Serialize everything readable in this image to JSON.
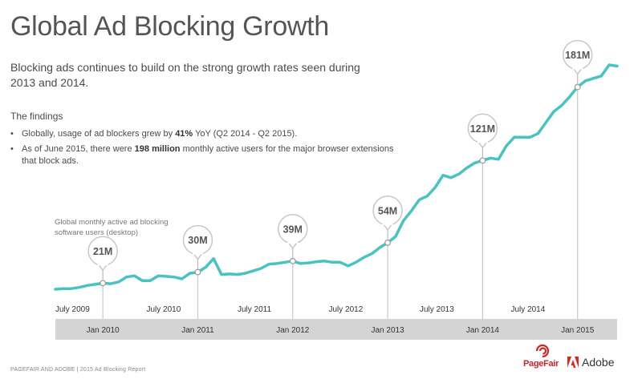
{
  "header": {
    "title": "Global Ad Blocking Growth",
    "subtitle": "Blocking ads continues to build on the strong growth rates seen during 2013 and 2014."
  },
  "findings": {
    "heading": "The findings",
    "item1": {
      "pre": "Globally, usage of ad blockers grew by ",
      "bold": "41%",
      "post": " YoY (Q2 2014 - Q2 2015)."
    },
    "item2": {
      "pre": "As of June 2015, there were ",
      "bold": "198 million",
      "post": " monthly active users for the major browser extensions that block ads."
    }
  },
  "footer": {
    "note": "PAGEFAIR AND ADOBE | 2015 Ad Blocking Report",
    "logo_pagefair": "PageFair",
    "logo_adobe": "Adobe"
  },
  "colors": {
    "line": "#48c3c3",
    "band": "#d4d4d4",
    "marker_line": "#c8c8c8",
    "pagefair_red": "#c7262c",
    "adobe_red": "#e1251b"
  },
  "chart_data": {
    "type": "line",
    "title": "Global Ad Blocking Growth",
    "ylabel": "Global monthly active ad blocking software users (desktop)",
    "y_unit": "million users",
    "x_range": [
      "2009-07",
      "2015-06"
    ],
    "y_range": [
      0,
      200
    ],
    "grid": false,
    "legend": "none",
    "upper_tick_labels": [
      "July 2009",
      "July 2010",
      "July 2011",
      "July 2012",
      "July 2013",
      "July 2014"
    ],
    "lower_tick_labels": [
      "Jan 2010",
      "Jan 2011",
      "Jan 2012",
      "Jan 2013",
      "Jan 2014",
      "Jan 2015"
    ],
    "series": [
      {
        "values": [
          [
            "2009-07",
            16
          ],
          [
            "2009-08",
            16.5
          ],
          [
            "2009-09",
            16.5
          ],
          [
            "2009-10",
            17.5
          ],
          [
            "2009-11",
            19
          ],
          [
            "2009-12",
            20
          ],
          [
            "2010-01",
            21
          ],
          [
            "2010-02",
            20.5
          ],
          [
            "2010-03",
            22
          ],
          [
            "2010-04",
            26
          ],
          [
            "2010-05",
            27
          ],
          [
            "2010-06",
            23
          ],
          [
            "2010-07",
            23
          ],
          [
            "2010-08",
            27
          ],
          [
            "2010-09",
            26.5
          ],
          [
            "2010-10",
            26
          ],
          [
            "2010-11",
            24.5
          ],
          [
            "2010-12",
            29
          ],
          [
            "2011-01",
            30
          ],
          [
            "2011-02",
            34
          ],
          [
            "2011-03",
            41
          ],
          [
            "2011-04",
            28
          ],
          [
            "2011-05",
            28.5
          ],
          [
            "2011-06",
            28
          ],
          [
            "2011-07",
            29
          ],
          [
            "2011-08",
            31
          ],
          [
            "2011-09",
            33
          ],
          [
            "2011-10",
            36.5
          ],
          [
            "2011-11",
            37
          ],
          [
            "2011-12",
            38
          ],
          [
            "2012-01",
            39
          ],
          [
            "2012-02",
            37
          ],
          [
            "2012-03",
            37.5
          ],
          [
            "2012-04",
            38.5
          ],
          [
            "2012-05",
            39
          ],
          [
            "2012-06",
            38
          ],
          [
            "2012-07",
            38
          ],
          [
            "2012-08",
            35
          ],
          [
            "2012-09",
            38
          ],
          [
            "2012-10",
            42
          ],
          [
            "2012-11",
            45
          ],
          [
            "2012-12",
            50
          ],
          [
            "2013-01",
            54
          ],
          [
            "2013-02",
            59
          ],
          [
            "2013-03",
            72
          ],
          [
            "2013-04",
            80
          ],
          [
            "2013-05",
            89
          ],
          [
            "2013-06",
            92
          ],
          [
            "2013-07",
            99
          ],
          [
            "2013-08",
            109
          ],
          [
            "2013-09",
            107
          ],
          [
            "2013-10",
            110
          ],
          [
            "2013-11",
            115
          ],
          [
            "2013-12",
            119
          ],
          [
            "2014-01",
            121
          ],
          [
            "2014-02",
            123
          ],
          [
            "2014-03",
            122
          ],
          [
            "2014-04",
            133
          ],
          [
            "2014-05",
            140
          ],
          [
            "2014-06",
            140
          ],
          [
            "2014-07",
            140
          ],
          [
            "2014-08",
            143
          ],
          [
            "2014-09",
            152
          ],
          [
            "2014-10",
            161
          ],
          [
            "2014-11",
            166
          ],
          [
            "2014-12",
            173
          ],
          [
            "2015-01",
            181
          ],
          [
            "2015-02",
            186
          ],
          [
            "2015-03",
            188
          ],
          [
            "2015-04",
            190
          ],
          [
            "2015-05",
            199
          ],
          [
            "2015-06",
            198
          ]
        ]
      }
    ],
    "annotations": [
      {
        "date": "2010-01",
        "value": 21,
        "label": "21M"
      },
      {
        "date": "2011-01",
        "value": 30,
        "label": "30M"
      },
      {
        "date": "2012-01",
        "value": 39,
        "label": "39M"
      },
      {
        "date": "2013-01",
        "value": 54,
        "label": "54M"
      },
      {
        "date": "2014-01",
        "value": 121,
        "label": "121M"
      },
      {
        "date": "2015-01",
        "value": 181,
        "label": "181M"
      }
    ]
  }
}
